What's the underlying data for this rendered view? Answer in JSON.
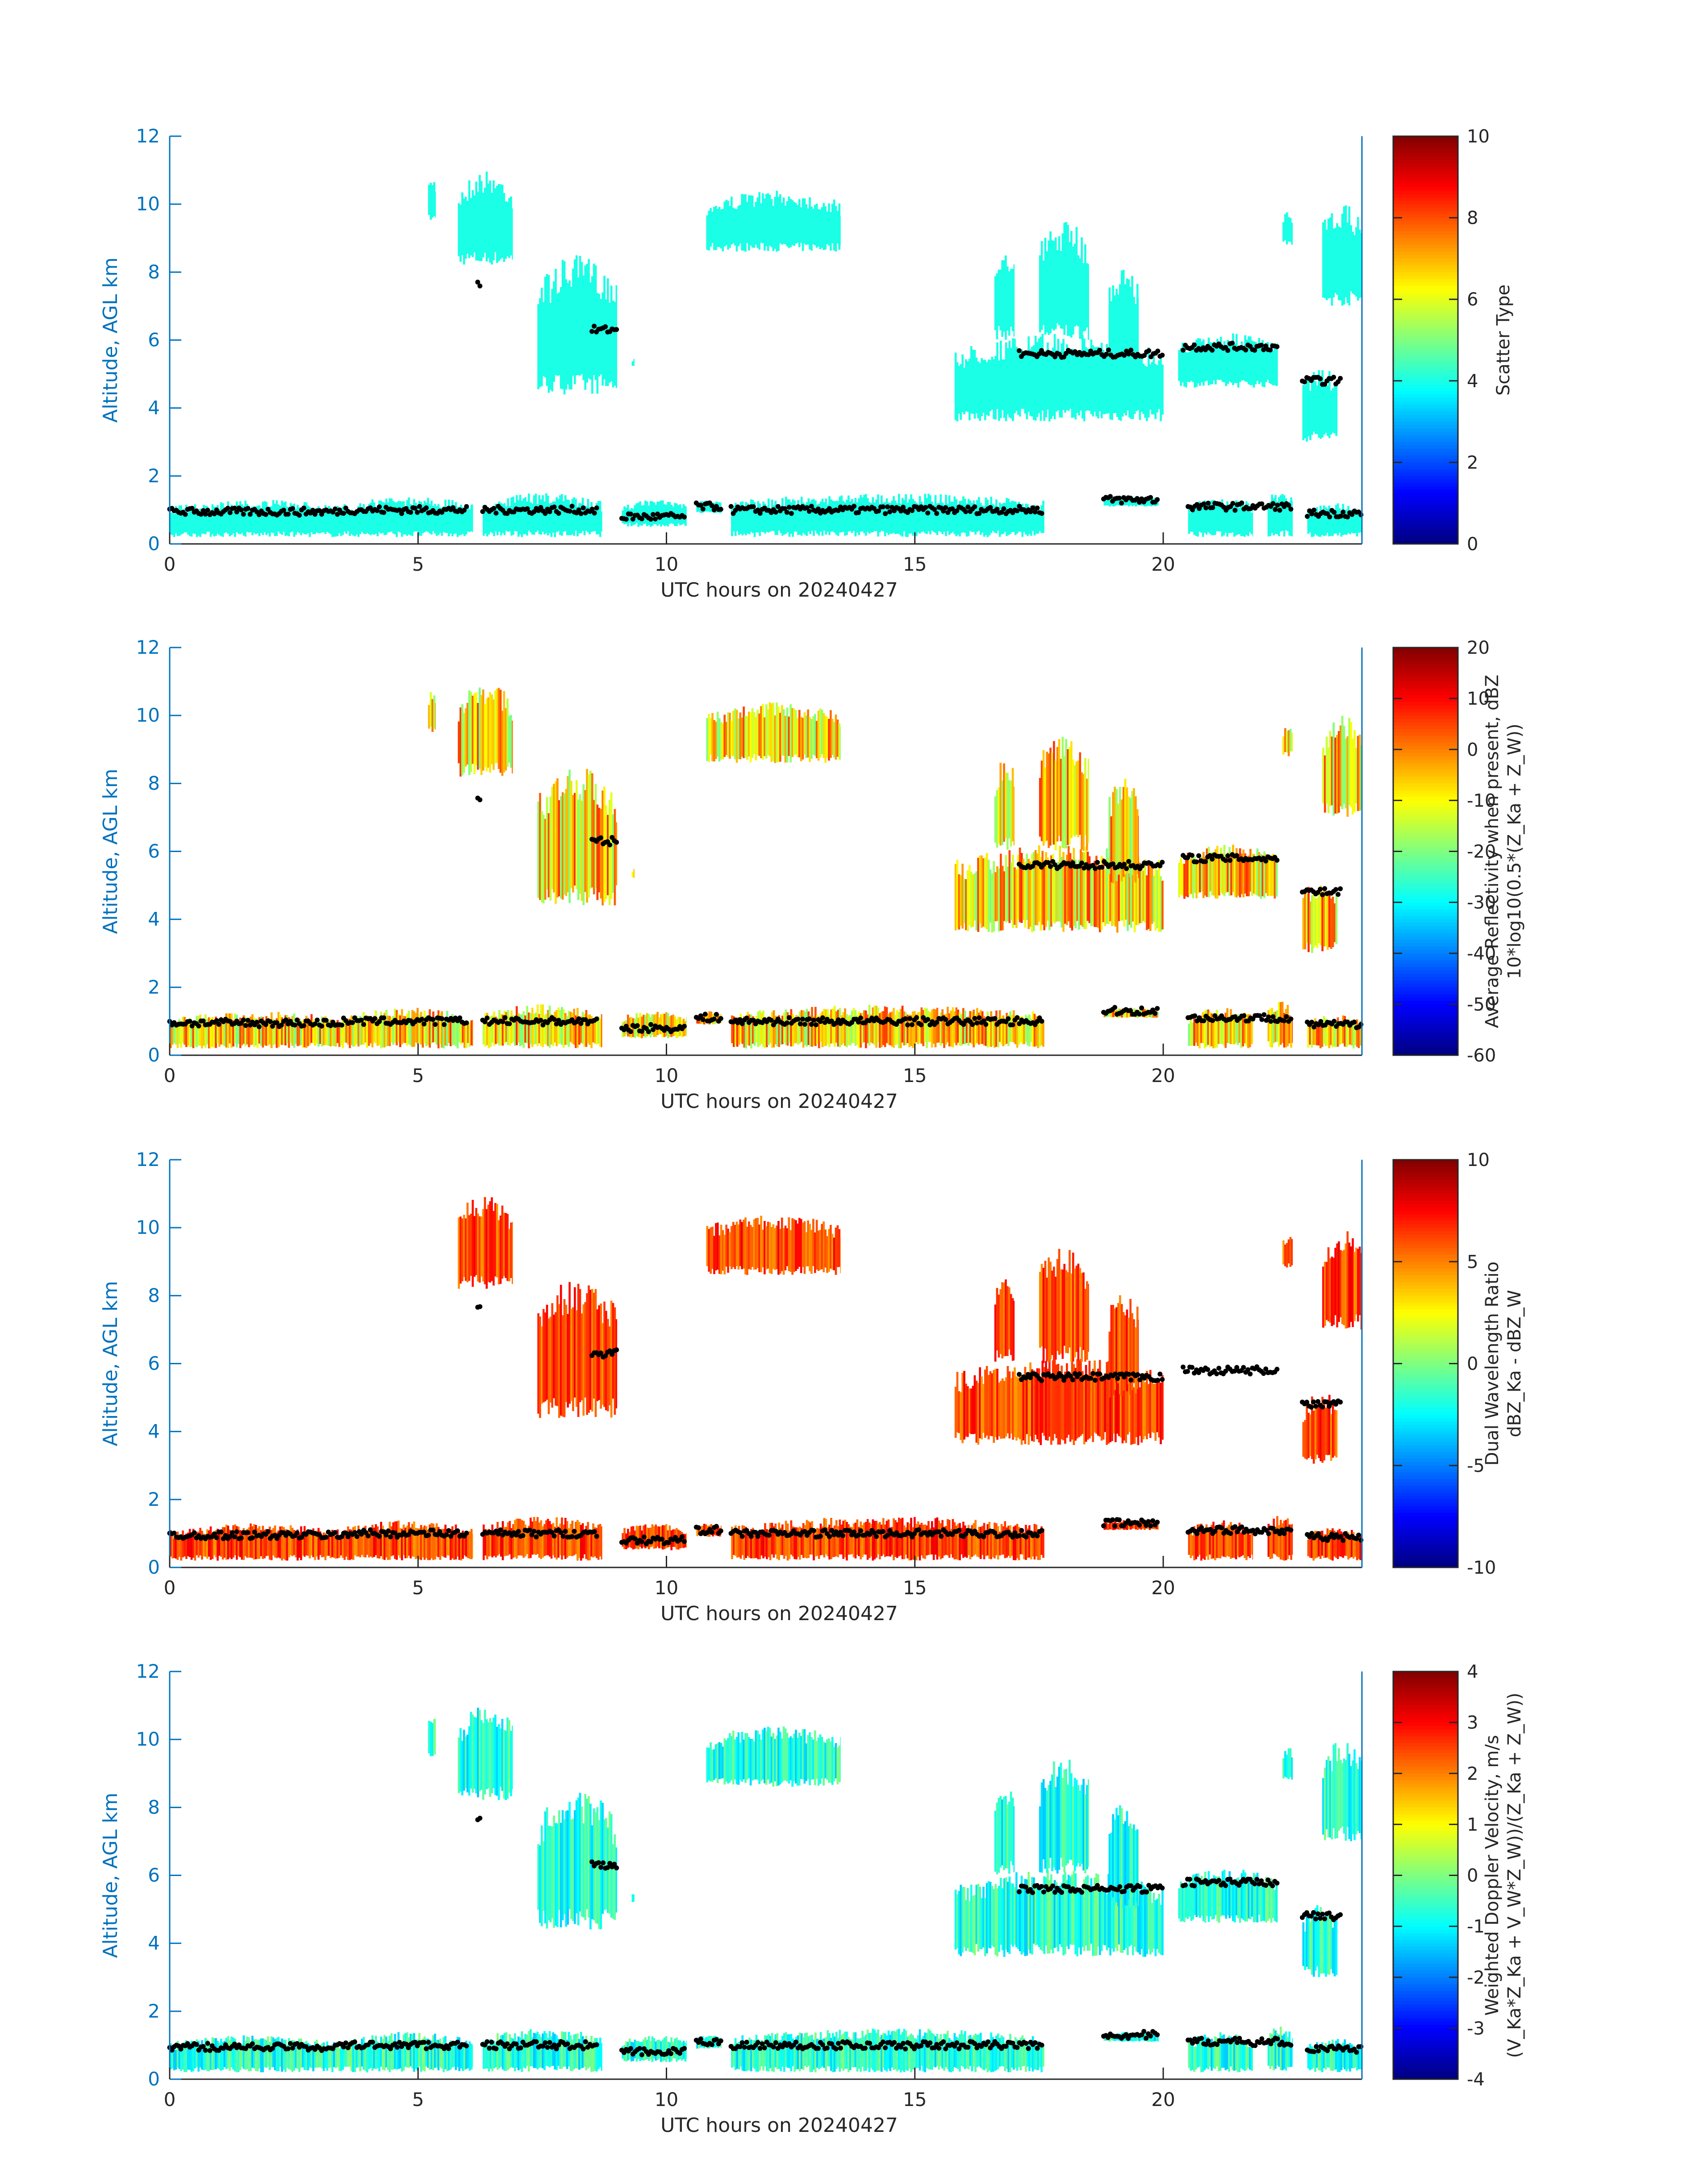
{
  "figure": {
    "background": "#ffffff",
    "axis_color": "#0072bd",
    "text_color": "#262626"
  },
  "chart_data": [
    {
      "type": "heatmap",
      "panel": "scatter-type",
      "xlabel": "UTC hours on 20240427",
      "ylabel": "Altitude, AGL km",
      "xlim": [
        0,
        24
      ],
      "ylim": [
        0,
        12
      ],
      "xticks": [
        0,
        5,
        10,
        15,
        20
      ],
      "yticks": [
        0,
        2,
        4,
        6,
        8,
        10,
        12
      ],
      "colorbar": {
        "label_lines": [
          "Scatter Type"
        ],
        "min": 0,
        "max": 10,
        "ticks": [
          0,
          2,
          4,
          6,
          8,
          10
        ]
      },
      "fill": "uniform",
      "fill_value": 4,
      "cloud_regions": [
        {
          "t0": 5.2,
          "t1": 5.35,
          "top": 10.8,
          "bottom": 9.5
        },
        {
          "t0": 5.8,
          "t1": 6.9,
          "top": 11.0,
          "bottom": 8.2
        },
        {
          "t0": 7.4,
          "t1": 9.0,
          "top": 8.5,
          "bottom": 4.4
        },
        {
          "t0": 9.3,
          "t1": 9.35,
          "top": 5.5,
          "bottom": 5.2
        },
        {
          "t0": 10.8,
          "t1": 13.5,
          "top": 10.4,
          "bottom": 8.6
        },
        {
          "t0": 15.8,
          "t1": 20.0,
          "top": 6.2,
          "bottom": 3.6
        },
        {
          "t0": 16.6,
          "t1": 17.0,
          "top": 8.8,
          "bottom": 6.0
        },
        {
          "t0": 17.5,
          "t1": 18.5,
          "top": 9.5,
          "bottom": 6.0
        },
        {
          "t0": 18.9,
          "t1": 19.5,
          "top": 8.2,
          "bottom": 5.0
        },
        {
          "t0": 20.3,
          "t1": 22.3,
          "top": 6.2,
          "bottom": 4.6
        },
        {
          "t0": 22.4,
          "t1": 22.6,
          "top": 9.8,
          "bottom": 8.8
        },
        {
          "t0": 22.8,
          "t1": 23.5,
          "top": 5.2,
          "bottom": 3.0
        },
        {
          "t0": 23.2,
          "t1": 24.0,
          "top": 10.0,
          "bottom": 7.0
        },
        {
          "t0": 0.0,
          "t1": 3.5,
          "top": 1.3,
          "bottom": 0.2
        },
        {
          "t0": 3.5,
          "t1": 6.1,
          "top": 1.4,
          "bottom": 0.2
        },
        {
          "t0": 6.3,
          "t1": 8.7,
          "top": 1.5,
          "bottom": 0.2
        },
        {
          "t0": 9.1,
          "t1": 10.4,
          "top": 1.3,
          "bottom": 0.5
        },
        {
          "t0": 10.6,
          "t1": 11.1,
          "top": 1.3,
          "bottom": 0.9
        },
        {
          "t0": 11.3,
          "t1": 17.6,
          "top": 1.5,
          "bottom": 0.2
        },
        {
          "t0": 18.8,
          "t1": 19.9,
          "top": 1.4,
          "bottom": 1.1
        },
        {
          "t0": 20.5,
          "t1": 21.8,
          "top": 1.4,
          "bottom": 0.2
        },
        {
          "t0": 22.1,
          "t1": 22.6,
          "top": 1.6,
          "bottom": 0.2
        },
        {
          "t0": 22.9,
          "t1": 24.0,
          "top": 1.2,
          "bottom": 0.2
        }
      ]
    },
    {
      "type": "heatmap",
      "panel": "average-reflectivity",
      "xlabel": "UTC hours on 20240427",
      "ylabel": "Altitude, AGL km",
      "xlim": [
        0,
        24
      ],
      "ylim": [
        0,
        12
      ],
      "xticks": [
        0,
        5,
        10,
        15,
        20
      ],
      "yticks": [
        0,
        2,
        4,
        6,
        8,
        10,
        12
      ],
      "colorbar": {
        "label_lines": [
          "Average Reflectivity when present, dBZ",
          "10*log10(0.5*(Z_Ka + Z_W))"
        ],
        "min": -60,
        "max": 20,
        "ticks": [
          -60,
          -50,
          -40,
          -30,
          -20,
          -10,
          0,
          10,
          20
        ]
      },
      "fill": "varied",
      "value_range": [
        -40,
        15
      ],
      "cloud_regions": "same as scatter-type"
    },
    {
      "type": "heatmap",
      "panel": "dual-wavelength-ratio",
      "xlabel": "UTC hours on 20240427",
      "ylabel": "Altitude, AGL km",
      "xlim": [
        0,
        24
      ],
      "ylim": [
        0,
        12
      ],
      "xticks": [
        0,
        5,
        10,
        15,
        20
      ],
      "yticks": [
        0,
        2,
        4,
        6,
        8,
        10,
        12
      ],
      "colorbar": {
        "label_lines": [
          "Dual Wavelength Ratio",
          "dBZ_Ka - dBZ_W"
        ],
        "min": -10,
        "max": 10,
        "ticks": [
          -10,
          -5,
          0,
          5,
          10
        ]
      },
      "fill": "varied",
      "value_range": [
        2,
        9
      ],
      "cloud_regions": "subset of scatter-type"
    },
    {
      "type": "heatmap",
      "panel": "weighted-doppler-velocity",
      "xlabel": "UTC hours on 20240427",
      "ylabel": "Altitude, AGL km",
      "xlim": [
        0,
        24
      ],
      "ylim": [
        0,
        12
      ],
      "xticks": [
        0,
        5,
        10,
        15,
        20
      ],
      "yticks": [
        0,
        2,
        4,
        6,
        8,
        10,
        12
      ],
      "colorbar": {
        "label_lines": [
          "Weighted Doppler Velocity, m/s",
          "(V_Ka*Z_Ka + V_W*Z_W))/(Z_Ka + Z_W))"
        ],
        "min": -4,
        "max": 4,
        "ticks": [
          -4,
          -3,
          -2,
          -1,
          0,
          1,
          2,
          3,
          4
        ]
      },
      "fill": "varied",
      "value_range": [
        -2.5,
        0.5
      ],
      "cloud_regions": "same as scatter-type"
    }
  ],
  "cloud_base_points": {
    "series": [
      {
        "t0": 0.0,
        "t1": 3.5,
        "h": 0.95
      },
      {
        "t0": 3.5,
        "t1": 6.0,
        "h": 1.0
      },
      {
        "t0": 6.2,
        "t1": 6.25,
        "h": 7.6
      },
      {
        "t0": 6.3,
        "t1": 8.6,
        "h": 1.0
      },
      {
        "t0": 8.5,
        "t1": 9.0,
        "h": 6.3
      },
      {
        "t0": 9.1,
        "t1": 10.4,
        "h": 0.8
      },
      {
        "t0": 10.6,
        "t1": 11.1,
        "h": 1.1
      },
      {
        "t0": 11.3,
        "t1": 17.6,
        "h": 1.0
      },
      {
        "t0": 17.1,
        "t1": 20.0,
        "h": 5.6
      },
      {
        "t0": 20.4,
        "t1": 22.3,
        "h": 5.8
      },
      {
        "t0": 18.8,
        "t1": 19.9,
        "h": 1.3
      },
      {
        "t0": 20.5,
        "t1": 22.6,
        "h": 1.1
      },
      {
        "t0": 22.8,
        "t1": 23.6,
        "h": 4.8
      },
      {
        "t0": 22.9,
        "t1": 24.0,
        "h": 0.9
      }
    ]
  }
}
